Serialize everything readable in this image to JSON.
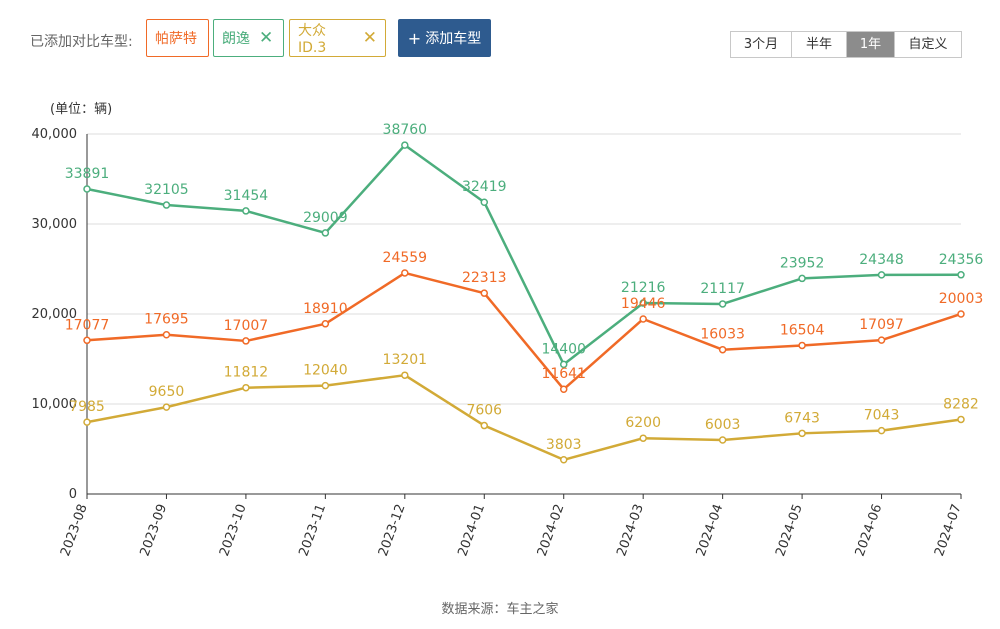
{
  "toolbar": {
    "label": "已添加对比车型:",
    "cars": [
      {
        "name": "帕萨特",
        "color": "#f06a27",
        "removable": false
      },
      {
        "name": "朗逸",
        "color": "#4cae7d",
        "removable": true
      },
      {
        "name": "大众ID.3",
        "color": "#d2aa37",
        "removable": true
      }
    ],
    "remove_glyph": "✕",
    "add_plus": "+",
    "add_label": "添加车型",
    "ranges": [
      "3个月",
      "半年",
      "1年",
      "自定义"
    ],
    "active_range": "1年"
  },
  "chart_data": {
    "type": "line",
    "ylabel": "(单位：辆)",
    "ylim": [
      0,
      40000
    ],
    "yticks": [
      0,
      10000,
      20000,
      30000,
      40000
    ],
    "ytick_labels": [
      "0",
      "10,000",
      "20,000",
      "30,000",
      "40,000"
    ],
    "categories": [
      "2023-08",
      "2023-09",
      "2023-10",
      "2023-11",
      "2023-12",
      "2024-01",
      "2024-02",
      "2024-03",
      "2024-04",
      "2024-05",
      "2024-06",
      "2024-07"
    ],
    "grid": "horizontal",
    "series": [
      {
        "name": "朗逸",
        "color": "#4cae7d",
        "values": [
          33891,
          32105,
          31454,
          29009,
          38760,
          32419,
          14400,
          21216,
          21117,
          23952,
          24348,
          24356
        ]
      },
      {
        "name": "帕萨特",
        "color": "#f06a27",
        "values": [
          17077,
          17695,
          17007,
          18910,
          24559,
          22313,
          11641,
          19446,
          16033,
          16504,
          17097,
          20003
        ]
      },
      {
        "name": "大众ID.3",
        "color": "#d2aa37",
        "values": [
          7985,
          9650,
          11812,
          12040,
          13201,
          7606,
          3803,
          6200,
          6003,
          6743,
          7043,
          8282
        ]
      }
    ]
  },
  "source": "数据来源：车主之家"
}
